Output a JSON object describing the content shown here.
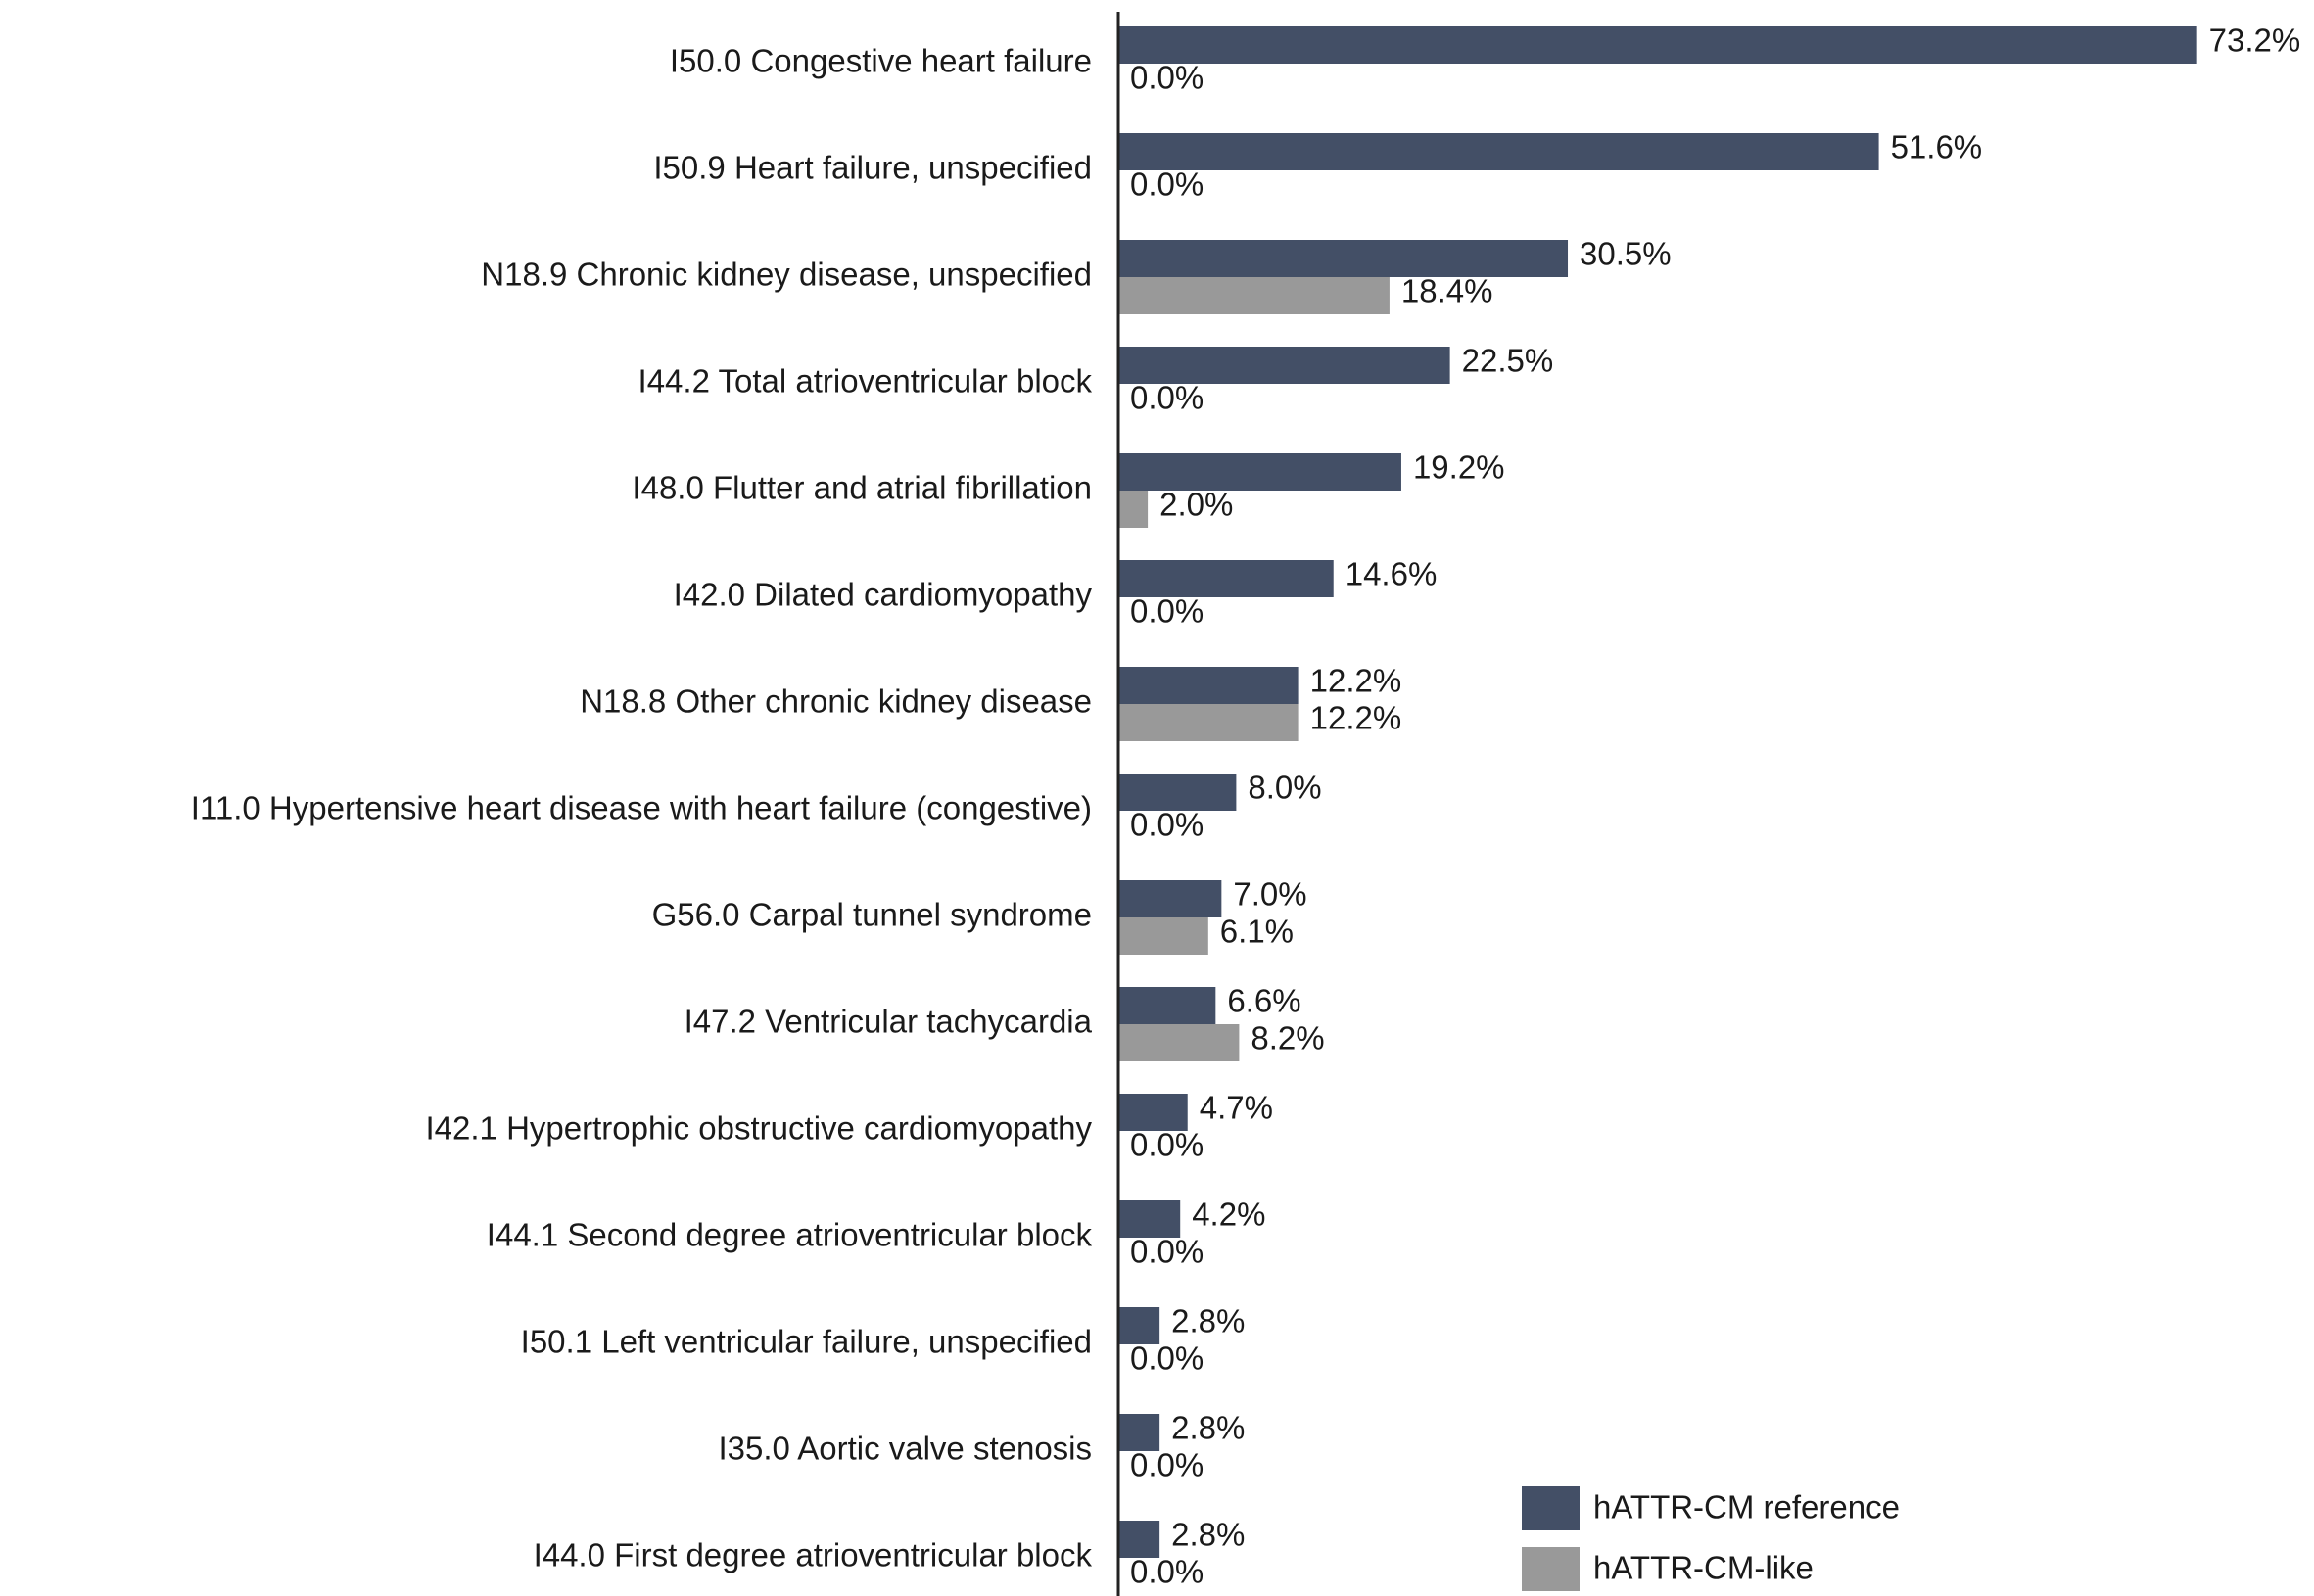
{
  "chart_data": {
    "type": "grouped-hbar",
    "categories": [
      "I50.0 Congestive heart failure",
      "I50.9 Heart failure, unspecified",
      "N18.9 Chronic kidney disease, unspecified",
      "I44.2 Total atrioventricular block",
      "I48.0 Flutter and atrial fibrillation",
      "I42.0 Dilated cardiomyopathy",
      "N18.8 Other chronic kidney disease",
      "I11.0 Hypertensive heart disease with heart failure (congestive)",
      "G56.0 Carpal tunnel syndrome",
      "I47.2 Ventricular tachycardia",
      "I42.1 Hypertrophic obstructive cardiomyopathy",
      "I44.1 Second degree atrioventricular block",
      "I50.1 Left ventricular failure, unspecified",
      "I35.0 Aortic valve stenosis",
      "I44.0 First degree atrioventricular block"
    ],
    "series": [
      {
        "name": "hATTR-CM reference",
        "color": "#434f66",
        "values": [
          73.2,
          51.6,
          30.5,
          22.5,
          19.2,
          14.6,
          12.2,
          8.0,
          7.0,
          6.6,
          4.7,
          4.2,
          2.8,
          2.8,
          2.8
        ],
        "value_labels": [
          "73.2%",
          "51.6%",
          "30.5%",
          "22.5%",
          "19.2%",
          "14.6%",
          "12.2%",
          "8.0%",
          "7.0%",
          "6.6%",
          "4.7%",
          "4.2%",
          "2.8%",
          "2.8%",
          "2.8%"
        ]
      },
      {
        "name": "hATTR-CM-like",
        "color": "#999999",
        "values": [
          0.0,
          0.0,
          18.4,
          0.0,
          2.0,
          0.0,
          12.2,
          0.0,
          6.1,
          8.2,
          0.0,
          0.0,
          0.0,
          0.0,
          0.0
        ],
        "value_labels": [
          "0.0%",
          "0.0%",
          "18.4%",
          "0.0%",
          "2.0%",
          "0.0%",
          "12.2%",
          "0.0%",
          "6.1%",
          "8.2%",
          "0.0%",
          "0.0%",
          "0.0%",
          "0.0%",
          "0.0%"
        ]
      }
    ],
    "xlim": [
      0,
      100
    ],
    "legend": "lower right"
  }
}
